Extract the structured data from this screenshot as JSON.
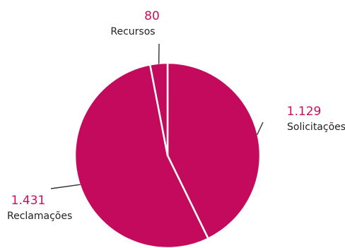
{
  "colors": {
    "slice": "#c40a5c",
    "separator": "#ffffff",
    "leader": "#333333",
    "value": "#c8105a",
    "label": "#222222"
  },
  "chart_data": {
    "type": "pie",
    "slices": [
      {
        "label": "Solicitações",
        "value": 1129,
        "value_text": "1.129"
      },
      {
        "label": "Reclamações",
        "value": 1431,
        "value_text": "1.431"
      },
      {
        "label": "Recursos",
        "value": 80,
        "value_text": "80"
      }
    ]
  }
}
